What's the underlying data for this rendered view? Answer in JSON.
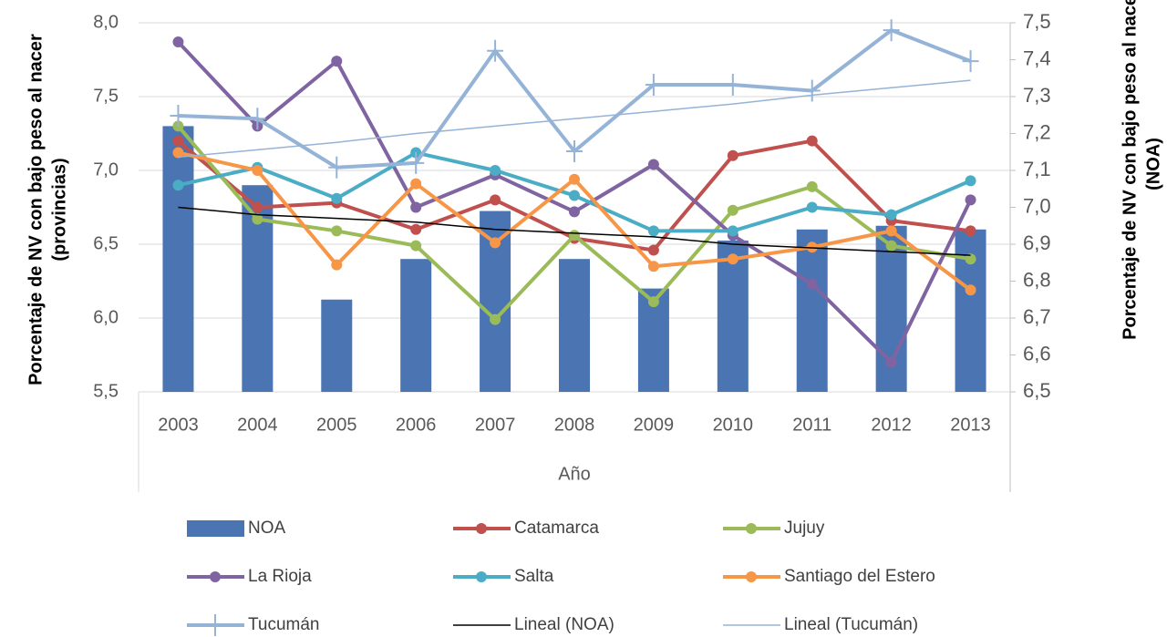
{
  "chart_data": {
    "type": "combo",
    "x_label": "Año",
    "y_label": [
      "Porcentaje de NV con bajo peso al nacer",
      "(provincias)"
    ],
    "y2_label": [
      "Porcentaje de NV con bajo peso al nacer",
      "(NOA)"
    ],
    "categories": [
      "2003",
      "2004",
      "2005",
      "2006",
      "2007",
      "2008",
      "2009",
      "2010",
      "2011",
      "2012",
      "2013"
    ],
    "ylim": [
      5.5,
      8.0
    ],
    "yticks": [
      {
        "value": 5.5,
        "label": "5,5"
      },
      {
        "value": 6.0,
        "label": "6,0"
      },
      {
        "value": 6.5,
        "label": "6,5"
      },
      {
        "value": 7.0,
        "label": "7,0"
      },
      {
        "value": 7.5,
        "label": "7,5"
      },
      {
        "value": 8.0,
        "label": "8,0"
      }
    ],
    "y2lim": [
      6.5,
      7.5
    ],
    "y2ticks": [
      {
        "value": 6.5,
        "label": "6,5"
      },
      {
        "value": 6.6,
        "label": "6,6"
      },
      {
        "value": 6.7,
        "label": "6,7"
      },
      {
        "value": 6.8,
        "label": "6,8"
      },
      {
        "value": 6.9,
        "label": "6,9"
      },
      {
        "value": 7.0,
        "label": "7,0"
      },
      {
        "value": 7.1,
        "label": "7,1"
      },
      {
        "value": 7.2,
        "label": "7,2"
      },
      {
        "value": 7.3,
        "label": "7,3"
      },
      {
        "value": 7.4,
        "label": "7,4"
      },
      {
        "value": 7.5,
        "label": "7,5"
      }
    ],
    "grid": true,
    "legend": "bottom",
    "series": [
      {
        "name": "NOA",
        "kind": "bar",
        "axis": "y2",
        "color": "#4a74b2",
        "values": [
          7.22,
          7.06,
          6.75,
          6.86,
          6.99,
          6.86,
          6.78,
          6.91,
          6.94,
          6.95,
          6.94
        ]
      },
      {
        "name": "Catamarca",
        "kind": "line",
        "marker": "circle",
        "line_width": 4,
        "color": "#c0504d",
        "values": [
          7.2,
          6.75,
          6.78,
          6.6,
          6.8,
          6.54,
          6.46,
          7.1,
          7.2,
          6.66,
          6.59
        ]
      },
      {
        "name": "Jujuy",
        "kind": "line",
        "marker": "circle",
        "line_width": 4,
        "color": "#9bbb59",
        "values": [
          7.3,
          6.67,
          6.59,
          6.49,
          5.99,
          6.56,
          6.11,
          6.73,
          6.89,
          6.49,
          6.4
        ]
      },
      {
        "name": "La Rioja",
        "kind": "line",
        "marker": "circle",
        "line_width": 4,
        "color": "#8064a2",
        "values": [
          7.87,
          7.3,
          7.74,
          6.75,
          6.97,
          6.72,
          7.04,
          6.56,
          6.23,
          5.7,
          6.8
        ]
      },
      {
        "name": "Salta",
        "kind": "line",
        "marker": "circle",
        "line_width": 4,
        "color": "#4bacc6",
        "values": [
          6.9,
          7.02,
          6.81,
          7.12,
          7.0,
          6.83,
          6.59,
          6.59,
          6.75,
          6.7,
          6.93
        ]
      },
      {
        "name": "Santiago del Estero",
        "kind": "line",
        "marker": "circle",
        "line_width": 4,
        "color": "#f79646",
        "values": [
          7.12,
          7.0,
          6.36,
          6.91,
          6.51,
          6.94,
          6.35,
          6.4,
          6.48,
          6.59,
          6.19
        ]
      },
      {
        "name": "Tucumán",
        "kind": "line",
        "marker": "plus",
        "line_width": 4,
        "color": "#95b3d7",
        "values": [
          7.37,
          7.35,
          7.02,
          7.05,
          7.81,
          7.13,
          7.58,
          7.58,
          7.54,
          7.95,
          7.74
        ]
      },
      {
        "name": "Lineal (NOA)",
        "kind": "line",
        "axis": "y2",
        "line_width": 1.5,
        "color": "#000000",
        "values": [
          7.0,
          6.98,
          6.97,
          6.96,
          6.94,
          6.93,
          6.92,
          6.9,
          6.89,
          6.88,
          6.87
        ]
      },
      {
        "name": "Lineal (Tucumán)",
        "kind": "line",
        "line_width": 1.5,
        "color": "#95b3d7",
        "values": [
          7.09,
          7.14,
          7.19,
          7.25,
          7.3,
          7.35,
          7.4,
          7.45,
          7.51,
          7.56,
          7.61
        ]
      }
    ]
  }
}
